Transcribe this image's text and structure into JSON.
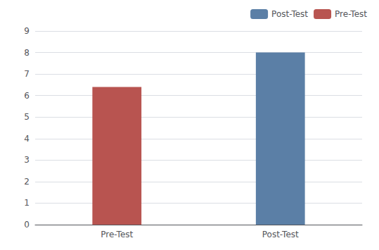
{
  "chart_data": {
    "type": "bar",
    "categories": [
      "Pre-Test",
      "Post-Test"
    ],
    "series": [
      {
        "name": "Post-Test",
        "color": "#5b7fa6",
        "values": [
          null,
          8.0
        ]
      },
      {
        "name": "Pre-Test",
        "color": "#b85450",
        "values": [
          6.4,
          null
        ]
      }
    ],
    "ylim": [
      0,
      9
    ],
    "yticks": [
      0,
      1,
      2,
      3,
      4,
      5,
      6,
      7,
      8,
      9
    ],
    "grid": true,
    "legend": "upper right"
  }
}
